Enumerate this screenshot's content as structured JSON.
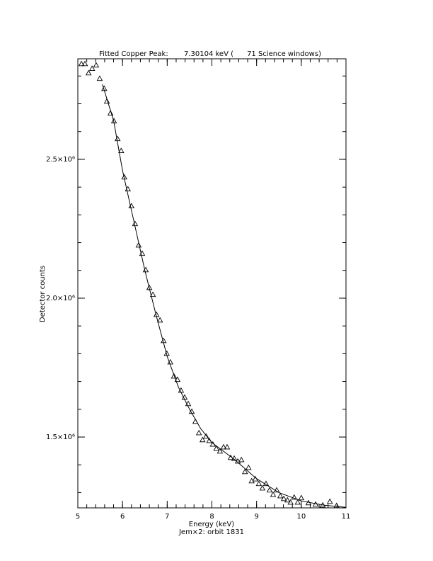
{
  "chart_data": {
    "type": "scatter",
    "title": "Fitted Copper Peak:       7.30104 keV (      71 Science windows)",
    "x_label": "Energy (keV)",
    "subtitle": "Jem×2: orbit 1831",
    "y_label": "Detector counts",
    "xlim": [
      5,
      11
    ],
    "xticks": [
      5,
      6,
      7,
      8,
      9,
      10,
      11
    ],
    "xminor_step": 0.2,
    "ylim": [
      1245000,
      2862000
    ],
    "yticks": [
      {
        "value": 1500000,
        "label": "1.5×10⁶"
      },
      {
        "value": 2000000,
        "label": "2.0×10⁶"
      },
      {
        "value": 2500000,
        "label": "2.5×10⁶"
      }
    ],
    "yminor_step": 100000,
    "color": "#000000",
    "points": {
      "x": [
        5.08,
        5.16,
        5.24,
        5.32,
        5.41,
        5.49,
        5.59,
        5.65,
        5.73,
        5.81,
        5.89,
        5.97,
        6.04,
        6.12,
        6.2,
        6.28,
        6.36,
        6.44,
        6.52,
        6.6,
        6.68,
        6.76,
        6.84,
        6.92,
        6.99,
        7.07,
        7.15,
        7.23,
        7.31,
        7.39,
        7.47,
        7.55,
        7.63,
        7.71,
        7.79,
        7.87,
        7.94,
        8.02,
        8.1,
        8.18,
        8.26,
        8.34,
        8.42,
        8.5,
        8.58,
        8.66,
        8.74,
        8.82,
        8.89,
        8.97,
        9.05,
        9.13,
        9.21,
        9.29,
        9.37,
        9.45,
        9.53,
        9.61,
        9.69,
        9.76,
        9.84,
        9.92,
        10.0,
        10.16,
        10.32,
        10.48,
        10.64,
        10.79
      ],
      "y": [
        2844000,
        2844000,
        2811000,
        2827000,
        2839000,
        2791000,
        2755000,
        2709000,
        2666000,
        2638000,
        2574000,
        2531000,
        2436000,
        2393000,
        2332000,
        2268000,
        2191000,
        2161000,
        2102000,
        2038000,
        2013000,
        1941000,
        1921000,
        1847000,
        1801000,
        1770000,
        1719000,
        1707000,
        1668000,
        1643000,
        1620000,
        1592000,
        1556000,
        1515000,
        1490000,
        1503000,
        1487000,
        1474000,
        1459000,
        1449000,
        1464000,
        1464000,
        1426000,
        1423000,
        1413000,
        1418000,
        1375000,
        1390000,
        1342000,
        1349000,
        1332000,
        1316000,
        1332000,
        1309000,
        1293000,
        1309000,
        1288000,
        1278000,
        1273000,
        1265000,
        1283000,
        1265000,
        1281000,
        1263000,
        1258000,
        1255000,
        1268000,
        1253000
      ]
    },
    "fit": {
      "x": [
        5.55,
        5.8,
        6.0,
        6.25,
        6.5,
        6.75,
        7.0,
        7.25,
        7.5,
        7.75,
        8.0,
        8.5,
        9.0,
        9.5,
        10.0,
        10.5,
        11.0
      ],
      "y": [
        2770000,
        2640000,
        2460000,
        2280000,
        2100000,
        1940000,
        1790000,
        1680000,
        1600000,
        1530000,
        1480000,
        1420000,
        1350000,
        1300000,
        1270000,
        1255000,
        1247000
      ]
    }
  }
}
